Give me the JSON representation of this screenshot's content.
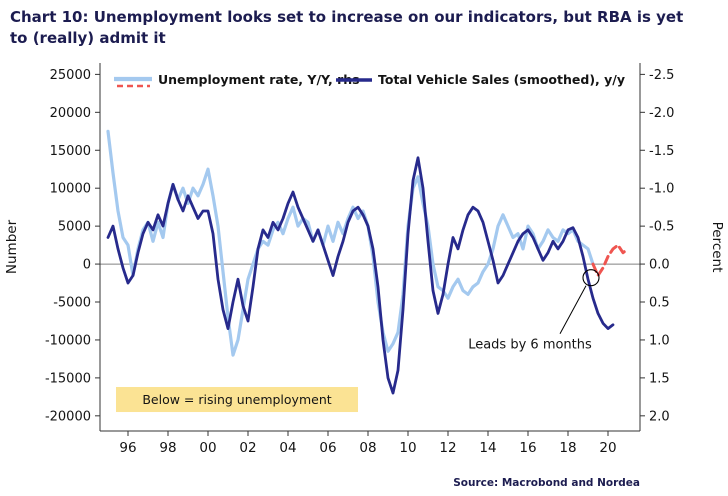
{
  "title": "Chart 10: Unemployment looks set to increase on our indicators, but RBA is yet to (really) admit it",
  "source": "Source: Macrobond and Nordea",
  "colors": {
    "unemployment": "#a4c9ef",
    "projection": "#ef5550",
    "vehicle_sales": "#272a8c",
    "zero_line": "#808080",
    "axis": "#333333",
    "note_box_bg": "#fbe394",
    "title_text": "#1c1c50"
  },
  "left_axis": {
    "label": "Number",
    "ticks": [
      25000,
      20000,
      15000,
      10000,
      5000,
      0,
      -5000,
      -10000,
      -15000,
      -20000
    ],
    "min": -22000,
    "max": 26500
  },
  "right_axis": {
    "label": "Percent",
    "ticks": [
      -2.5,
      -2.0,
      -1.5,
      -1.0,
      -0.5,
      0.0,
      0.5,
      1.0,
      1.5,
      2.0
    ],
    "inverted": true,
    "scale_to_left": -10000
  },
  "x_axis": {
    "min": 1994.6,
    "max": 2021.6,
    "tick_values": [
      1996,
      1998,
      2000,
      2002,
      2004,
      2006,
      2008,
      2010,
      2012,
      2014,
      2016,
      2018,
      2020
    ],
    "tick_labels": [
      "96",
      "98",
      "00",
      "02",
      "04",
      "06",
      "08",
      "10",
      "12",
      "14",
      "16",
      "18",
      "20"
    ]
  },
  "legend": [
    {
      "label": "Unemployment rate, Y/Y, rhs",
      "style": "lightblue-with-red-dash"
    },
    {
      "label": "Total Vehicle Sales (smoothed), y/y",
      "style": "navy"
    }
  ],
  "chart_data": {
    "type": "line",
    "series": [
      {
        "name": "Unemployment rate, Y/Y, rhs",
        "axis": "right",
        "unit": "percent",
        "color_key": "unemployment",
        "width": 3.2,
        "dashed": false,
        "x_start": 1995.0,
        "x_step": 0.25,
        "values": [
          -1.75,
          -1.2,
          -0.7,
          -0.35,
          -0.25,
          0.15,
          -0.2,
          -0.45,
          -0.55,
          -0.3,
          -0.55,
          -0.35,
          -0.8,
          -1.05,
          -0.85,
          -1.0,
          -0.8,
          -1.0,
          -0.9,
          -1.05,
          -1.25,
          -0.9,
          -0.5,
          0.1,
          0.7,
          1.2,
          1.0,
          0.6,
          0.2,
          0.0,
          -0.2,
          -0.3,
          -0.25,
          -0.45,
          -0.55,
          -0.4,
          -0.6,
          -0.75,
          -0.5,
          -0.6,
          -0.55,
          -0.3,
          -0.45,
          -0.25,
          -0.5,
          -0.3,
          -0.55,
          -0.4,
          -0.6,
          -0.75,
          -0.6,
          -0.7,
          -0.5,
          -0.1,
          0.5,
          0.9,
          1.15,
          1.05,
          0.9,
          0.4,
          -0.5,
          -1.0,
          -1.15,
          -0.8,
          -0.5,
          0.0,
          0.3,
          0.35,
          0.45,
          0.3,
          0.2,
          0.35,
          0.4,
          0.3,
          0.25,
          0.1,
          0.0,
          -0.2,
          -0.5,
          -0.65,
          -0.5,
          -0.35,
          -0.4,
          -0.2,
          -0.5,
          -0.4,
          -0.2,
          -0.3,
          -0.45,
          -0.35,
          -0.3,
          -0.45,
          -0.4,
          -0.45,
          -0.3,
          -0.25,
          -0.2,
          0.0
        ]
      },
      {
        "name": "Unemployment rate projection (dashed)",
        "axis": "right",
        "unit": "percent",
        "color_key": "projection",
        "width": 3,
        "dashed": true,
        "x_start": 2019.25,
        "x_step": 0.25,
        "values": [
          0.0,
          0.15,
          0.05,
          -0.1,
          -0.2,
          -0.25,
          -0.15,
          -0.2
        ]
      },
      {
        "name": "Total Vehicle Sales (smoothed), y/y",
        "axis": "left",
        "unit": "number",
        "color_key": "vehicle_sales",
        "width": 2.8,
        "dashed": false,
        "x_start": 1995.0,
        "x_step": 0.25,
        "values": [
          3500,
          5000,
          2000,
          -500,
          -2500,
          -1500,
          1500,
          4000,
          5500,
          4500,
          6500,
          5000,
          8000,
          10500,
          8500,
          7000,
          9000,
          7500,
          6000,
          7000,
          7000,
          4000,
          -2000,
          -6000,
          -8500,
          -5000,
          -2000,
          -5500,
          -7500,
          -3000,
          2000,
          4500,
          3500,
          5500,
          4500,
          6000,
          8000,
          9500,
          7500,
          6000,
          4500,
          3000,
          4500,
          2500,
          500,
          -1500,
          1000,
          3000,
          5500,
          7000,
          7500,
          6500,
          5000,
          2000,
          -3000,
          -10000,
          -15000,
          -17000,
          -14000,
          -6000,
          4000,
          11000,
          14000,
          10000,
          3000,
          -3500,
          -6500,
          -4000,
          0,
          3500,
          2000,
          4500,
          6500,
          7500,
          7000,
          5500,
          3000,
          500,
          -2500,
          -1500,
          0,
          1500,
          3000,
          4000,
          4500,
          3500,
          2000,
          500,
          1500,
          3000,
          2000,
          3000,
          4500,
          4800,
          3500,
          1000,
          -2000,
          -4500,
          -6500,
          -7800,
          -8500,
          -8000
        ]
      }
    ],
    "annotations": {
      "lead_label": {
        "text": "Leads by 6 months",
        "x": 2016.1,
        "y_number": -10500
      },
      "circle": {
        "x": 2019.15,
        "y_number": -1800,
        "r": 8
      },
      "note_box": {
        "text": "Below = rising unemployment",
        "x1": 1995.4,
        "x2": 2007.5,
        "y1_number": -16200,
        "y2_number": -19500
      }
    }
  }
}
